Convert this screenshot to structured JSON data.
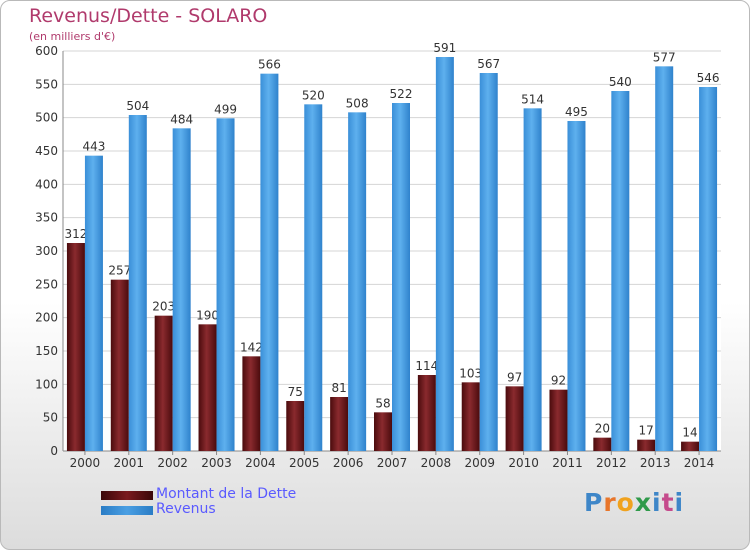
{
  "title": "Revenus/Dette - SOLARO",
  "subtitle": "(en milliers d'€)",
  "legend": [
    {
      "label": "Montant de la Dette",
      "color": "#7a1a1e"
    },
    {
      "label": "Revenus",
      "color": "#4a9fe3"
    }
  ],
  "brand": {
    "text": "Proxiti"
  },
  "chart_data": {
    "type": "bar",
    "title": "Revenus/Dette - SOLARO",
    "subtitle": "(en milliers d'€)",
    "categories": [
      "2000",
      "2001",
      "2002",
      "2003",
      "2004",
      "2005",
      "2006",
      "2007",
      "2008",
      "2009",
      "2010",
      "2011",
      "2012",
      "2013",
      "2014"
    ],
    "series": [
      {
        "name": "Montant de la Dette",
        "color": "#7a1a1e",
        "values": [
          312,
          257,
          203,
          190,
          142,
          75,
          81,
          58,
          114,
          103,
          97,
          92,
          20,
          17,
          14
        ]
      },
      {
        "name": "Revenus",
        "color": "#4a9fe3",
        "values": [
          443,
          504,
          484,
          499,
          566,
          520,
          508,
          522,
          591,
          567,
          514,
          495,
          540,
          577,
          546
        ]
      }
    ],
    "ylim": [
      0,
      600
    ],
    "yticks": [
      0,
      50,
      100,
      150,
      200,
      250,
      300,
      350,
      400,
      450,
      500,
      550,
      600
    ],
    "grid": true,
    "legend_position": "bottom-left",
    "data_labels": true
  }
}
